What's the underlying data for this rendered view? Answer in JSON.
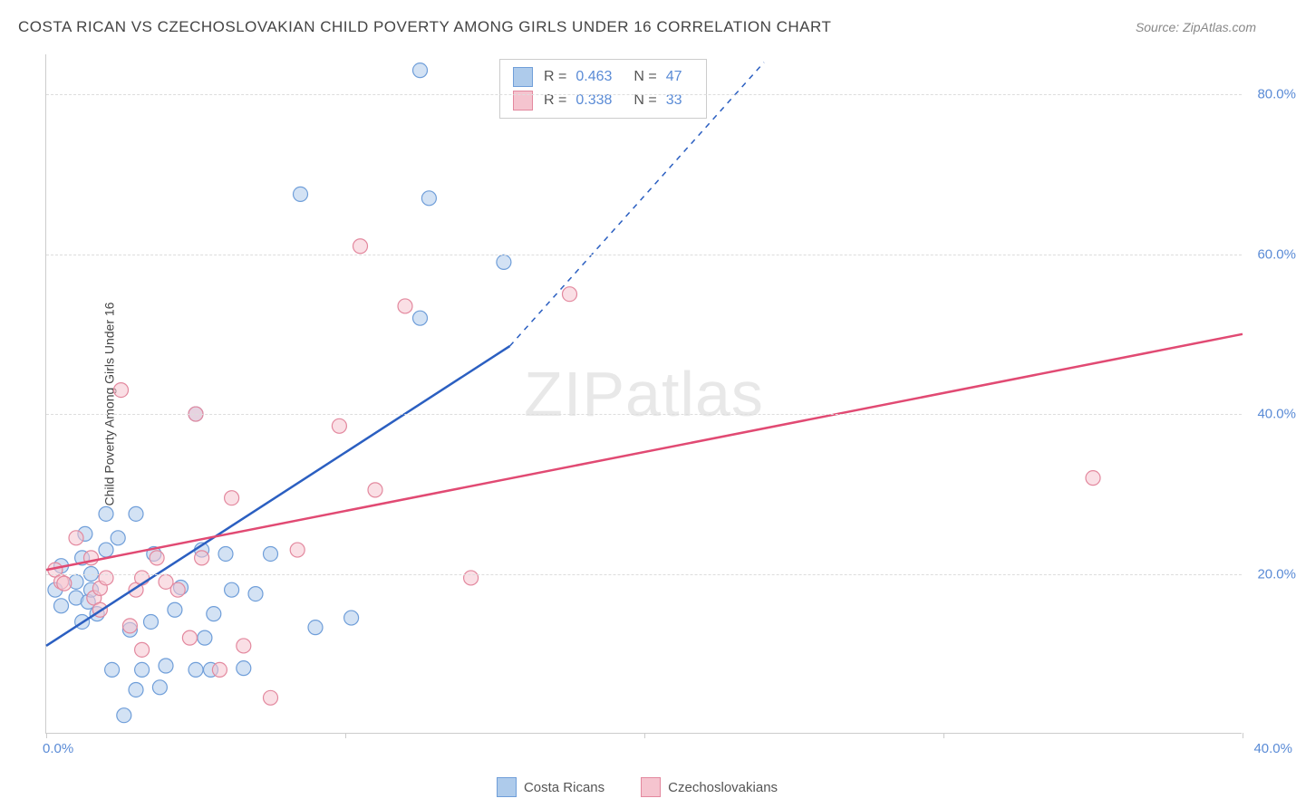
{
  "title": "COSTA RICAN VS CZECHOSLOVAKIAN CHILD POVERTY AMONG GIRLS UNDER 16 CORRELATION CHART",
  "source_label": "Source: ZipAtlas.com",
  "y_axis_label": "Child Poverty Among Girls Under 16",
  "watermark_bold": "ZIP",
  "watermark_light": "atlas",
  "chart": {
    "type": "scatter-with-regression",
    "xlim": [
      0,
      40
    ],
    "ylim": [
      0,
      85
    ],
    "y_ticks": [
      20,
      40,
      60,
      80
    ],
    "y_tick_labels": [
      "20.0%",
      "40.0%",
      "60.0%",
      "80.0%"
    ],
    "x_tick_positions": [
      0,
      10,
      20,
      30,
      40
    ],
    "x_left_label": "0.0%",
    "x_right_label": "40.0%",
    "grid_color": "#dddddd",
    "axis_color": "#cccccc",
    "background": "#ffffff",
    "marker_radius": 8,
    "marker_stroke_width": 1.2,
    "line_width": 2.5,
    "series": [
      {
        "name": "Costa Ricans",
        "fill": "#aecbeb",
        "stroke": "#6f9ed9",
        "line_color": "#2b5fc1",
        "r_value": "0.463",
        "n_value": "47",
        "regression": {
          "x1": 0,
          "y1": 11,
          "x2": 15.5,
          "y2": 48.5,
          "dash_x2": 24,
          "dash_y2": 84
        },
        "points": [
          [
            0.3,
            18
          ],
          [
            0.5,
            16
          ],
          [
            0.5,
            21
          ],
          [
            1.0,
            17
          ],
          [
            1.0,
            19
          ],
          [
            1.2,
            14
          ],
          [
            1.2,
            22
          ],
          [
            1.3,
            25
          ],
          [
            1.4,
            16.5
          ],
          [
            1.5,
            18
          ],
          [
            1.5,
            20
          ],
          [
            1.7,
            15
          ],
          [
            2.0,
            23
          ],
          [
            2.0,
            27.5
          ],
          [
            2.2,
            8
          ],
          [
            2.4,
            24.5
          ],
          [
            2.6,
            2.3
          ],
          [
            2.8,
            13
          ],
          [
            3.0,
            5.5
          ],
          [
            3.0,
            27.5
          ],
          [
            3.2,
            8
          ],
          [
            3.5,
            14
          ],
          [
            3.6,
            22.5
          ],
          [
            3.8,
            5.8
          ],
          [
            4.0,
            8.5
          ],
          [
            4.3,
            15.5
          ],
          [
            4.5,
            18.3
          ],
          [
            5.0,
            8
          ],
          [
            5.0,
            40
          ],
          [
            5.2,
            23
          ],
          [
            5.3,
            12
          ],
          [
            5.5,
            8
          ],
          [
            5.6,
            15
          ],
          [
            6.0,
            22.5
          ],
          [
            6.2,
            18
          ],
          [
            6.6,
            8.2
          ],
          [
            7.0,
            17.5
          ],
          [
            7.5,
            22.5
          ],
          [
            8.5,
            67.5
          ],
          [
            9.0,
            13.3
          ],
          [
            10.2,
            14.5
          ],
          [
            12.5,
            83
          ],
          [
            12.5,
            52
          ],
          [
            12.8,
            67
          ],
          [
            15.3,
            59
          ]
        ]
      },
      {
        "name": "Czechoslovakians",
        "fill": "#f5c4cf",
        "stroke": "#e3889e",
        "line_color": "#e14a73",
        "r_value": "0.338",
        "n_value": "33",
        "regression": {
          "x1": 0,
          "y1": 20.5,
          "x2": 40,
          "y2": 50
        },
        "points": [
          [
            0.3,
            20.5
          ],
          [
            0.5,
            19
          ],
          [
            0.6,
            18.8
          ],
          [
            1.0,
            24.5
          ],
          [
            1.5,
            22
          ],
          [
            1.6,
            17
          ],
          [
            1.8,
            15.5
          ],
          [
            1.8,
            18.2
          ],
          [
            2.0,
            19.5
          ],
          [
            2.5,
            43
          ],
          [
            2.8,
            13.5
          ],
          [
            3.0,
            18
          ],
          [
            3.2,
            10.5
          ],
          [
            3.2,
            19.5
          ],
          [
            3.7,
            22
          ],
          [
            4.0,
            19
          ],
          [
            4.4,
            18
          ],
          [
            4.8,
            12
          ],
          [
            5.0,
            40
          ],
          [
            5.2,
            22
          ],
          [
            5.8,
            8
          ],
          [
            6.2,
            29.5
          ],
          [
            6.6,
            11
          ],
          [
            7.5,
            4.5
          ],
          [
            8.4,
            23
          ],
          [
            9.8,
            38.5
          ],
          [
            10.5,
            61
          ],
          [
            11.0,
            30.5
          ],
          [
            12.0,
            53.5
          ],
          [
            14.2,
            19.5
          ],
          [
            17.5,
            55
          ],
          [
            35.0,
            32
          ]
        ]
      }
    ]
  },
  "stats_box": {
    "r_label": "R =",
    "n_label": "N ="
  },
  "legend": {
    "items": [
      "Costa Ricans",
      "Czechoslovakians"
    ]
  }
}
